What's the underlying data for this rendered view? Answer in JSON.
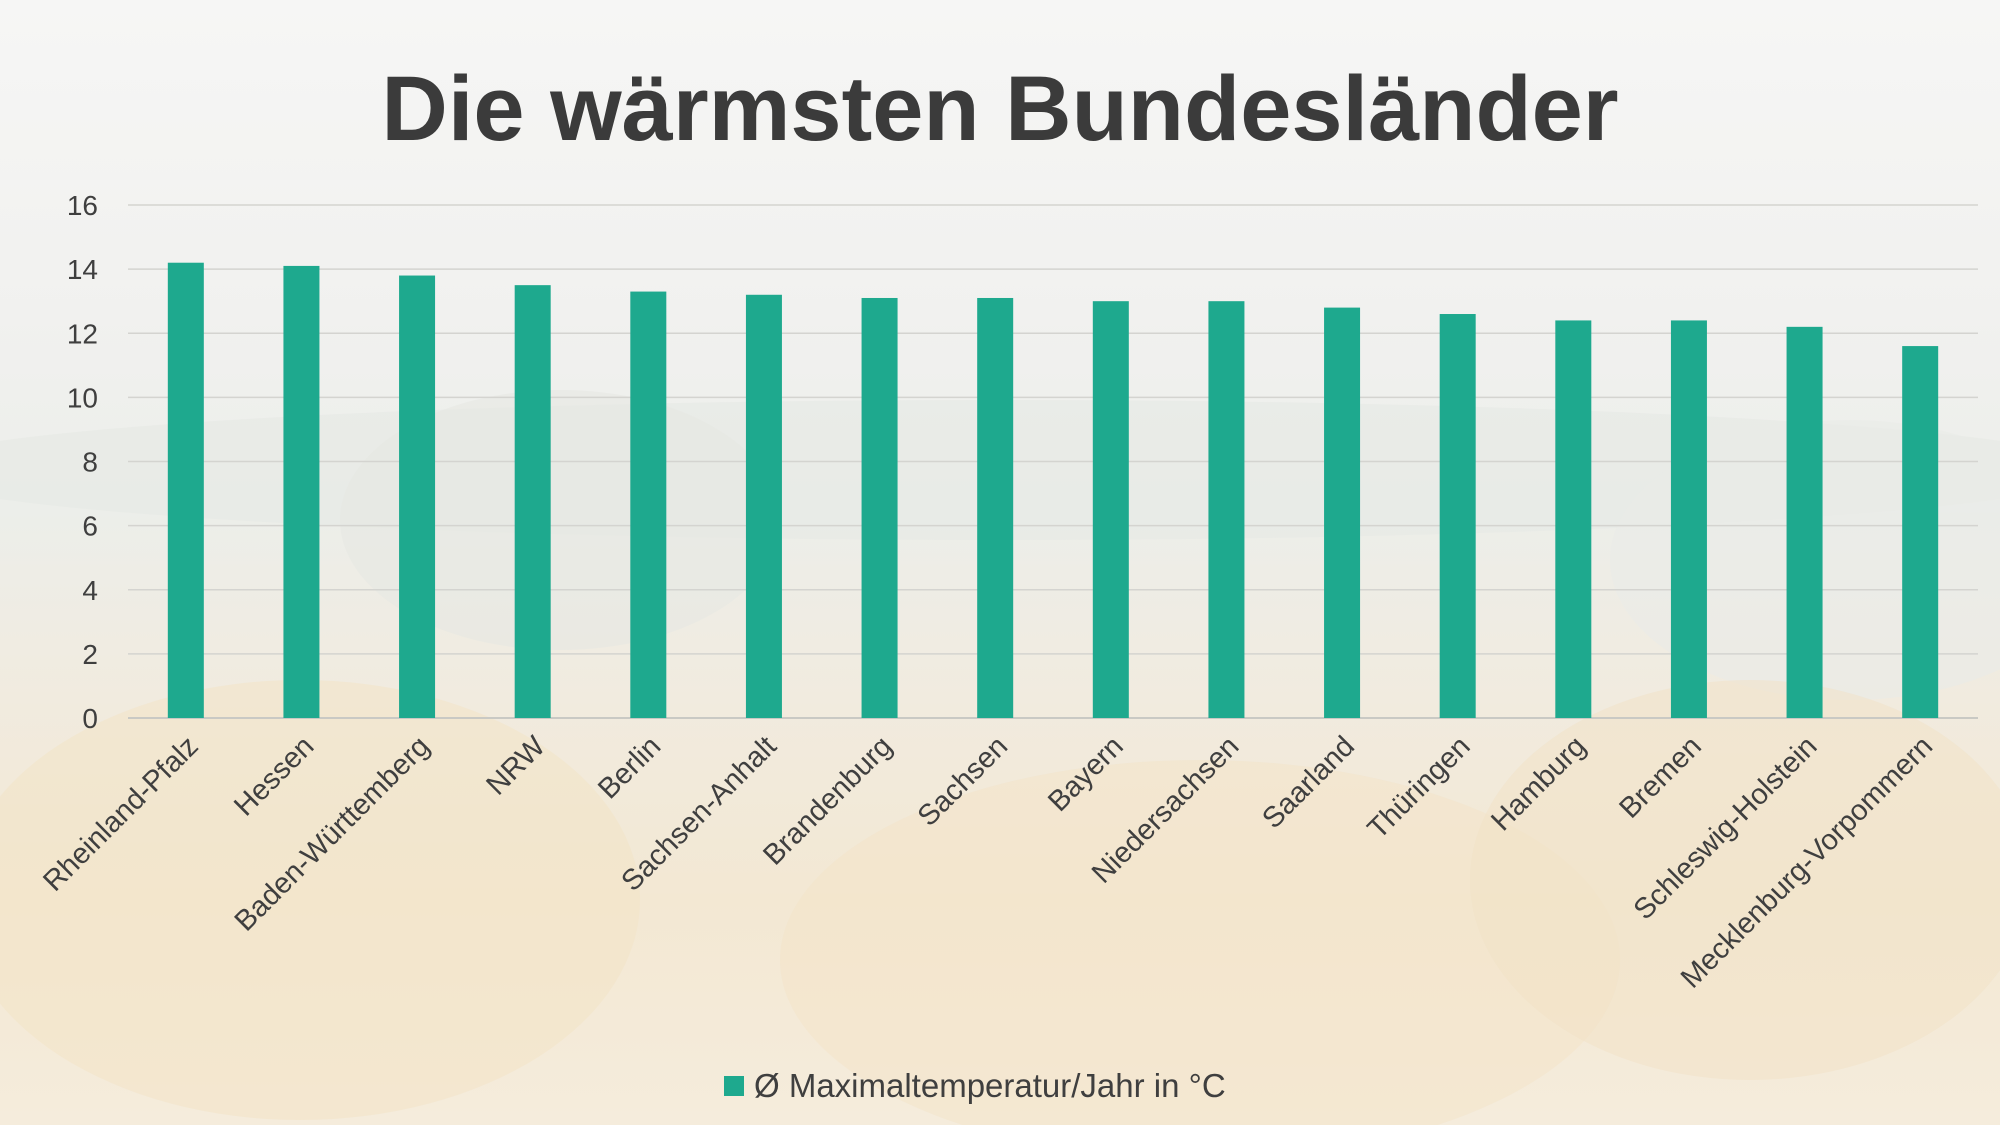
{
  "colors": {
    "bar": "#1ea98e",
    "text": "#3f3f3f",
    "title": "#3b3b3b"
  },
  "chart_data": {
    "type": "bar",
    "title": "Die wärmsten Bundesländer",
    "categories": [
      "Rheinland-Pfalz",
      "Hessen",
      "Baden-Württemberg",
      "NRW",
      "Berlin",
      "Sachsen-Anhalt",
      "Brandenburg",
      "Sachsen",
      "Bayern",
      "Niedersachsen",
      "Saarland",
      "Thüringen",
      "Hamburg",
      "Bremen",
      "Schleswig-Holstein",
      "Mecklenburg-Vorpommern"
    ],
    "series": [
      {
        "name": "Ø Maximaltemperatur/Jahr in °C",
        "values": [
          14.2,
          14.1,
          13.8,
          13.5,
          13.3,
          13.2,
          13.1,
          13.1,
          13.0,
          13.0,
          12.8,
          12.6,
          12.4,
          12.4,
          12.2,
          11.6
        ]
      }
    ],
    "ylim": [
      0,
      16
    ],
    "yticks": [
      0,
      2,
      4,
      6,
      8,
      10,
      12,
      14,
      16
    ],
    "grid": true,
    "legend": "bottom-center",
    "xlabel": "",
    "ylabel": ""
  }
}
